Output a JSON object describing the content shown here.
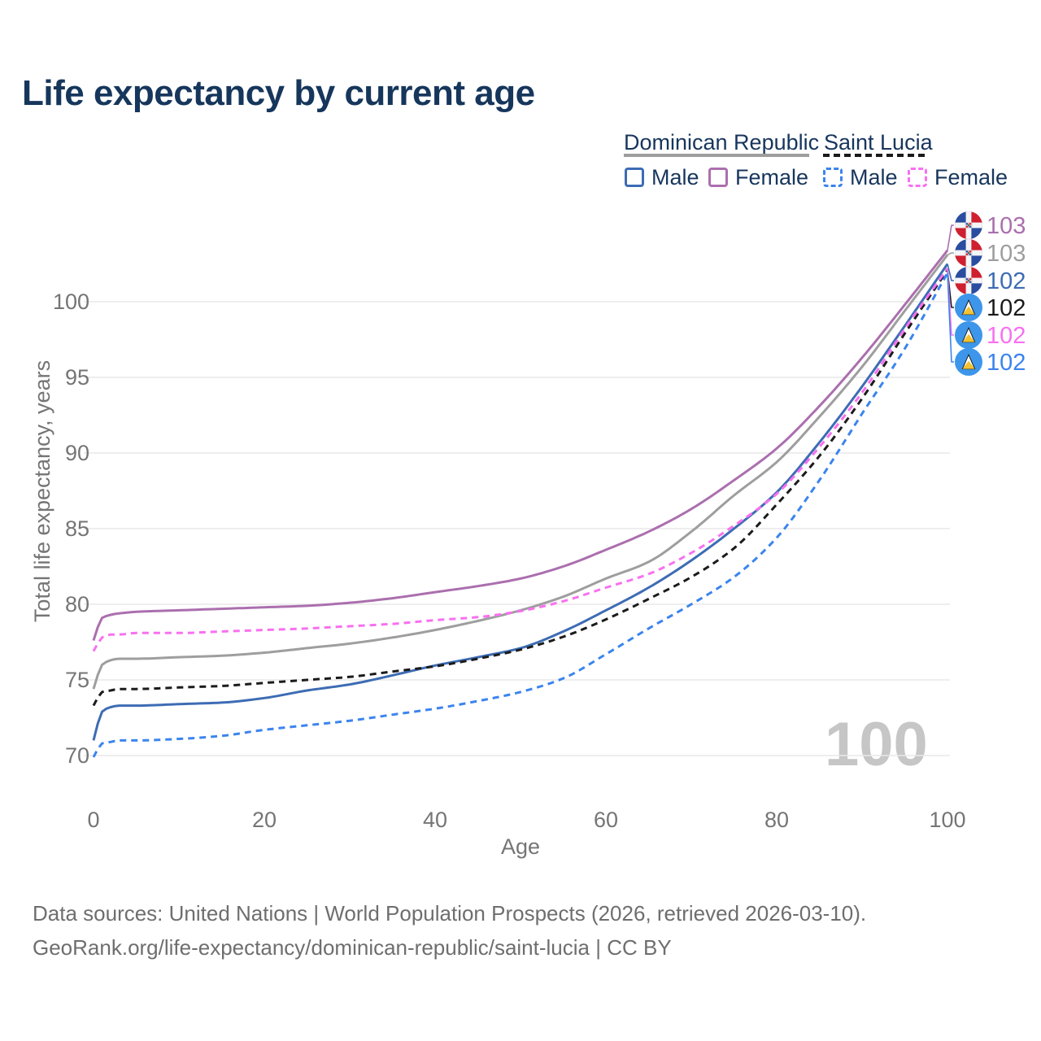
{
  "title": "Life expectancy by current age",
  "watermark": "100",
  "legend": {
    "groups": [
      {
        "label": "Dominican Republic",
        "line_style": "solid",
        "underline_color": "#9e9e9e",
        "items": [
          {
            "label": "Male",
            "color": "#3d6cb4",
            "dash": false
          },
          {
            "label": "Female",
            "color": "#ab6fae",
            "dash": false
          }
        ]
      },
      {
        "label": "Saint Lucia",
        "line_style": "dashed",
        "underline_color": "#1b1b1b",
        "items": [
          {
            "label": "Male",
            "color": "#3b84ee",
            "dash": true
          },
          {
            "label": "Female",
            "color": "#f870f0",
            "dash": true
          }
        ]
      }
    ]
  },
  "chart_data": {
    "type": "line",
    "title": "Life expectancy by current age",
    "xlabel": "Age",
    "ylabel": "Total life expectancy, years",
    "x_ticks": [
      0,
      20,
      40,
      60,
      80,
      100
    ],
    "y_ticks": [
      70,
      75,
      80,
      85,
      90,
      95,
      100
    ],
    "xlim": [
      0,
      100
    ],
    "ylim": [
      69.5,
      103.5
    ],
    "grid": "horizontal",
    "legend_position": "top-right",
    "x": [
      0,
      1,
      2,
      3,
      5,
      10,
      15,
      20,
      25,
      30,
      35,
      40,
      45,
      50,
      55,
      60,
      65,
      70,
      75,
      80,
      85,
      90,
      95,
      100
    ],
    "series": [
      {
        "name": "Dominican Republic Female",
        "country": "Dominican Republic",
        "sex": "Female",
        "color": "#ab6fae",
        "dash": false,
        "flag": "dominican-republic",
        "end_label": "103",
        "values": [
          77.6,
          79.1,
          79.3,
          79.4,
          79.5,
          79.6,
          79.7,
          79.8,
          79.9,
          80.1,
          80.4,
          80.8,
          81.2,
          81.7,
          82.5,
          83.6,
          84.8,
          86.3,
          88.2,
          90.3,
          93.1,
          96.3,
          99.8,
          103.4
        ]
      },
      {
        "name": "Dominican Republic Both sexes",
        "country": "Dominican Republic",
        "sex": "Both",
        "color": "#9e9e9e",
        "dash": false,
        "flag": "dominican-republic",
        "end_label": "103",
        "values": [
          74.4,
          76.0,
          76.3,
          76.4,
          76.4,
          76.5,
          76.6,
          76.8,
          77.1,
          77.4,
          77.8,
          78.3,
          78.9,
          79.6,
          80.5,
          81.7,
          82.8,
          84.8,
          87.2,
          89.4,
          92.4,
          95.7,
          99.4,
          103.1
        ]
      },
      {
        "name": "Dominican Republic Male",
        "country": "Dominican Republic",
        "sex": "Male",
        "color": "#3d6cb4",
        "dash": false,
        "flag": "dominican-republic",
        "end_label": "102",
        "values": [
          71.0,
          72.9,
          73.2,
          73.3,
          73.3,
          73.4,
          73.5,
          73.8,
          74.3,
          74.7,
          75.3,
          75.95,
          76.5,
          77.1,
          78.2,
          79.6,
          81.1,
          82.9,
          85.0,
          87.4,
          90.7,
          94.4,
          98.4,
          102.5
        ]
      },
      {
        "name": "Saint Lucia Both sexes",
        "country": "Saint Lucia",
        "sex": "Both",
        "color": "#1b1b1b",
        "dash": true,
        "flag": "saint-lucia",
        "end_label": "102",
        "values": [
          73.3,
          74.2,
          74.3,
          74.4,
          74.4,
          74.5,
          74.6,
          74.8,
          75.0,
          75.2,
          75.55,
          75.9,
          76.4,
          77.0,
          77.85,
          79.0,
          80.35,
          81.8,
          83.7,
          86.6,
          89.8,
          93.6,
          97.9,
          102.1
        ]
      },
      {
        "name": "Saint Lucia Female",
        "country": "Saint Lucia",
        "sex": "Female",
        "color": "#f870f0",
        "dash": true,
        "flag": "saint-lucia",
        "end_label": "102",
        "values": [
          76.9,
          77.8,
          78.0,
          78.0,
          78.1,
          78.1,
          78.2,
          78.3,
          78.4,
          78.55,
          78.7,
          78.95,
          79.15,
          79.55,
          80.2,
          81.1,
          82.0,
          83.4,
          85.2,
          87.3,
          90.4,
          94.0,
          98.2,
          102.2
        ]
      },
      {
        "name": "Saint Lucia Male",
        "country": "Saint Lucia",
        "sex": "Male",
        "color": "#3b84ee",
        "dash": true,
        "flag": "saint-lucia",
        "end_label": "102",
        "values": [
          69.9,
          70.8,
          70.9,
          71.0,
          71.0,
          71.1,
          71.3,
          71.7,
          72.0,
          72.3,
          72.7,
          73.1,
          73.6,
          74.2,
          75.1,
          76.7,
          78.4,
          80.0,
          81.8,
          84.4,
          88.2,
          92.6,
          96.9,
          101.9
        ]
      }
    ]
  },
  "footer": {
    "line1": "Data sources: United Nations | World Population Prospects (2026, retrieved 2026-03-10).",
    "line2": "GeoRank.org/life-expectancy/dominican-republic/saint-lucia | CC BY"
  }
}
